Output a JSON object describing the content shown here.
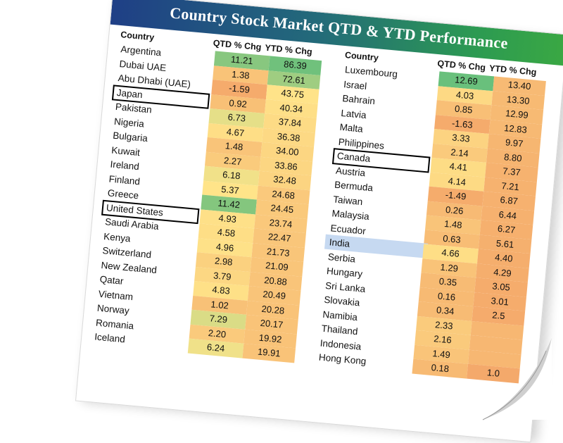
{
  "title": "Country Stock Market QTD & YTD Performance",
  "chart_data": {
    "type": "table",
    "title": "Country Stock Market QTD & YTD Performance",
    "columns": [
      "Country",
      "QTD % Chg",
      "YTD % Chg"
    ],
    "highlighted_rows": [
      "Japan",
      "United States",
      "Canada",
      "India"
    ],
    "color_scale": {
      "low": "#f4a86a",
      "mid": "#ffe58a",
      "high": "#63be7b"
    },
    "left_table": [
      {
        "country": "Argentina",
        "qtd": "11.21",
        "ytd": "86.39"
      },
      {
        "country": "Dubai UAE",
        "qtd": "1.38",
        "ytd": "72.61"
      },
      {
        "country": "Abu Dhabi (UAE)",
        "qtd": "-1.59",
        "ytd": "43.75"
      },
      {
        "country": "Japan",
        "qtd": "0.92",
        "ytd": "40.34"
      },
      {
        "country": "Pakistan",
        "qtd": "6.73",
        "ytd": "37.84"
      },
      {
        "country": "Nigeria",
        "qtd": "4.67",
        "ytd": "36.38"
      },
      {
        "country": "Bulgaria",
        "qtd": "1.48",
        "ytd": "34.00"
      },
      {
        "country": "Kuwait",
        "qtd": "2.27",
        "ytd": "33.86"
      },
      {
        "country": "Ireland",
        "qtd": "6.18",
        "ytd": "32.48"
      },
      {
        "country": "Finland",
        "qtd": "5.37",
        "ytd": "24.68"
      },
      {
        "country": "Greece",
        "qtd": "11.42",
        "ytd": "24.45"
      },
      {
        "country": "United States",
        "qtd": "4.93",
        "ytd": "23.74"
      },
      {
        "country": "Saudi Arabia",
        "qtd": "4.58",
        "ytd": "22.47"
      },
      {
        "country": "Kenya",
        "qtd": "4.96",
        "ytd": "21.73"
      },
      {
        "country": "Switzerland",
        "qtd": "2.98",
        "ytd": "21.09"
      },
      {
        "country": "New Zealand",
        "qtd": "3.79",
        "ytd": "20.88"
      },
      {
        "country": "Qatar",
        "qtd": "4.83",
        "ytd": "20.49"
      },
      {
        "country": "Vietnam",
        "qtd": "1.02",
        "ytd": "20.28"
      },
      {
        "country": "Norway",
        "qtd": "7.29",
        "ytd": "20.17"
      },
      {
        "country": "Romania",
        "qtd": "2.20",
        "ytd": "19.92"
      },
      {
        "country": "Iceland",
        "qtd": "6.24",
        "ytd": "19.91"
      }
    ],
    "right_table": [
      {
        "country": "Luxembourg",
        "qtd": "12.69",
        "ytd": "13.40"
      },
      {
        "country": "Israel",
        "qtd": "4.03",
        "ytd": "13.30"
      },
      {
        "country": "Bahrain",
        "qtd": "0.85",
        "ytd": "12.99"
      },
      {
        "country": "Latvia",
        "qtd": "-1.63",
        "ytd": "12.83"
      },
      {
        "country": "Malta",
        "qtd": "3.33",
        "ytd": "9.97"
      },
      {
        "country": "Philippines",
        "qtd": "2.14",
        "ytd": "8.80"
      },
      {
        "country": "Canada",
        "qtd": "4.41",
        "ytd": "7.37"
      },
      {
        "country": "Austria",
        "qtd": "4.14",
        "ytd": "7.21"
      },
      {
        "country": "Bermuda",
        "qtd": "-1.49",
        "ytd": "6.87"
      },
      {
        "country": "Taiwan",
        "qtd": "0.26",
        "ytd": "6.44"
      },
      {
        "country": "Malaysia",
        "qtd": "1.48",
        "ytd": "6.27"
      },
      {
        "country": "Ecuador",
        "qtd": "0.63",
        "ytd": "5.61"
      },
      {
        "country": "India",
        "qtd": "4.66",
        "ytd": "4.40"
      },
      {
        "country": "Serbia",
        "qtd": "1.29",
        "ytd": "4.29"
      },
      {
        "country": "Hungary",
        "qtd": "0.35",
        "ytd": "3.05"
      },
      {
        "country": "Sri Lanka",
        "qtd": "0.16",
        "ytd": "3.01"
      },
      {
        "country": "Slovakia",
        "qtd": "0.34",
        "ytd": "2.5"
      },
      {
        "country": "Namibia",
        "qtd": "2.33",
        "ytd": ""
      },
      {
        "country": "Thailand",
        "qtd": "2.16",
        "ytd": ""
      },
      {
        "country": "Indonesia",
        "qtd": "1.49",
        "ytd": ""
      },
      {
        "country": "Hong Kong",
        "qtd": "0.18",
        "ytd": "1.0"
      }
    ]
  }
}
